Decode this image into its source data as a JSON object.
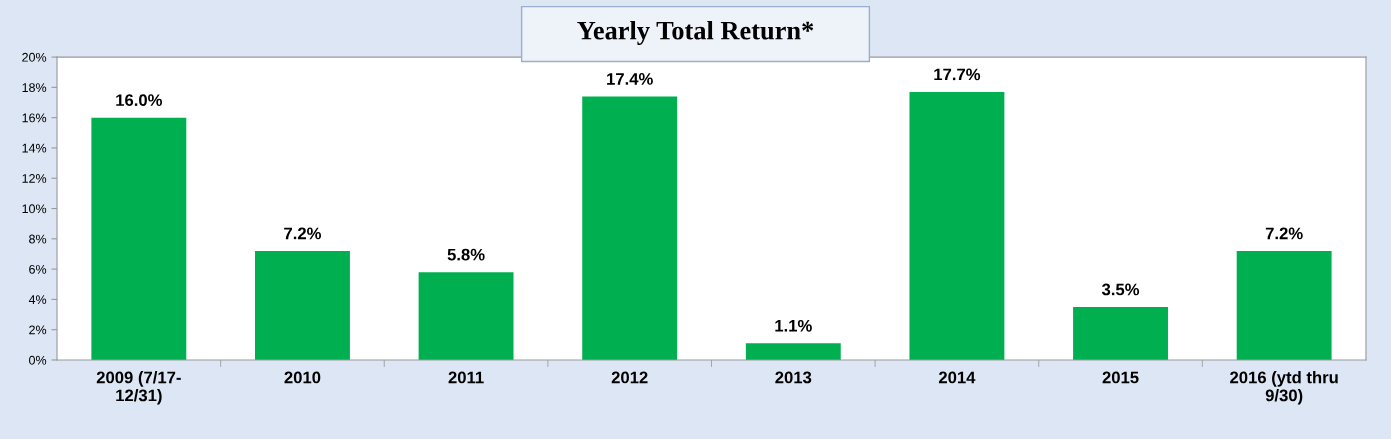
{
  "chart_data": {
    "type": "bar",
    "title": "Yearly Total Return*",
    "categories": [
      "2009 (7/17-\n12/31)",
      "2010",
      "2011",
      "2012",
      "2013",
      "2014",
      "2015",
      "2016 (ytd thru\n9/30)"
    ],
    "values": [
      16.0,
      7.2,
      5.8,
      17.4,
      1.1,
      17.7,
      3.5,
      7.2
    ],
    "value_labels": [
      "16.0%",
      "7.2%",
      "5.8%",
      "17.4%",
      "1.1%",
      "17.7%",
      "3.5%",
      "7.2%"
    ],
    "color": "#00b050",
    "ylim": [
      0,
      20
    ],
    "yticks": [
      {
        "value": 0,
        "label": "0%"
      },
      {
        "value": 2,
        "label": "2%"
      },
      {
        "value": 4,
        "label": "4%"
      },
      {
        "value": 6,
        "label": "6%"
      },
      {
        "value": 8,
        "label": "8%"
      },
      {
        "value": 10,
        "label": "10%"
      },
      {
        "value": 12,
        "label": "12%"
      },
      {
        "value": 14,
        "label": "14%"
      },
      {
        "value": 16,
        "label": "16%"
      },
      {
        "value": 18,
        "label": "18%"
      },
      {
        "value": 20,
        "label": "20%"
      }
    ],
    "grid": false,
    "legend": false
  }
}
